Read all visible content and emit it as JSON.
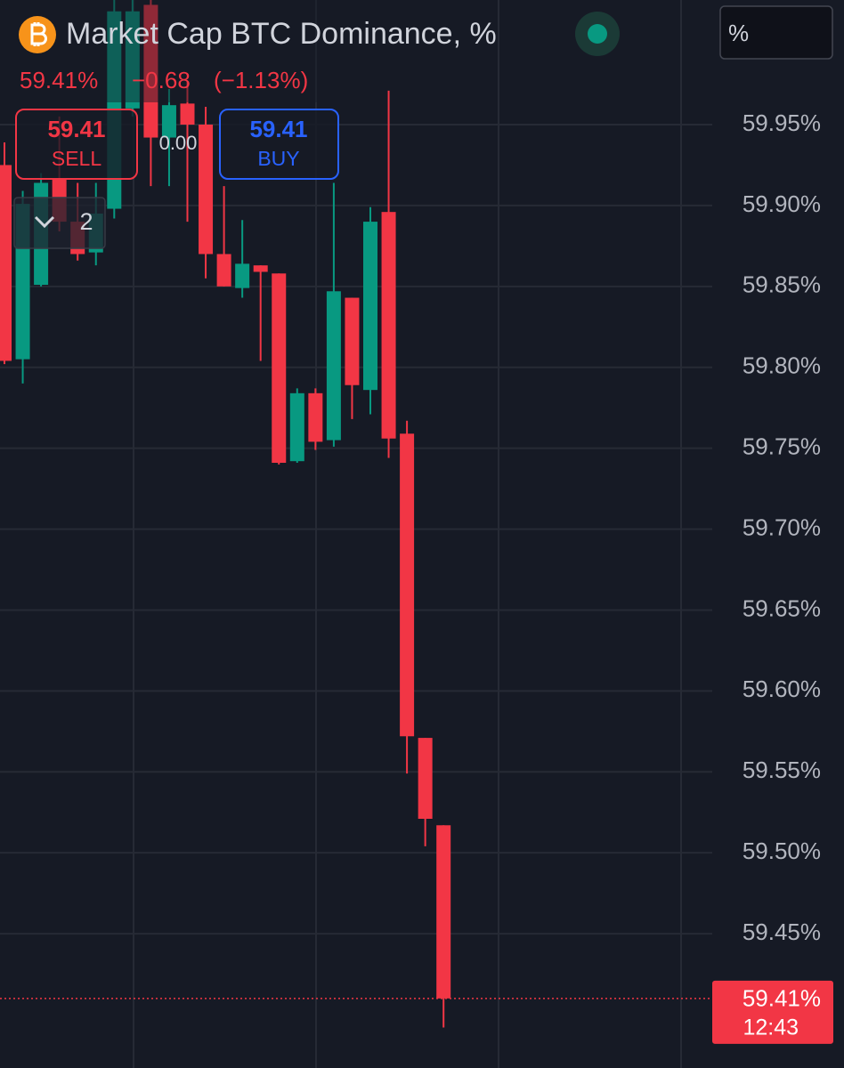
{
  "chart_data": {
    "type": "candlestick",
    "title": "Market Cap BTC Dominance, %",
    "candles": [
      {
        "open": 59.925,
        "high": 59.939,
        "low": 59.802,
        "close": 59.804
      },
      {
        "open": 59.805,
        "high": 59.909,
        "low": 59.79,
        "close": 59.901
      },
      {
        "open": 59.851,
        "high": 59.92,
        "low": 59.85,
        "close": 59.914
      },
      {
        "open": 59.917,
        "high": 59.955,
        "low": 59.884,
        "close": 59.89
      },
      {
        "open": 59.89,
        "high": 59.914,
        "low": 59.866,
        "close": 59.87
      },
      {
        "open": 59.871,
        "high": 59.914,
        "low": 59.863,
        "close": 59.895
      },
      {
        "open": 59.898,
        "high": 60.03,
        "low": 59.892,
        "close": 60.02
      },
      {
        "open": 59.96,
        "high": 60.03,
        "low": 59.955,
        "close": 60.02
      },
      {
        "open": 60.024,
        "high": 60.03,
        "low": 59.912,
        "close": 59.942
      },
      {
        "open": 59.942,
        "high": 59.972,
        "low": 59.912,
        "close": 59.962
      },
      {
        "open": 59.963,
        "high": 59.977,
        "low": 59.89,
        "close": 59.95
      },
      {
        "open": 59.95,
        "high": 59.961,
        "low": 59.855,
        "close": 59.87
      },
      {
        "open": 59.87,
        "high": 59.912,
        "low": 59.85,
        "close": 59.85
      },
      {
        "open": 59.849,
        "high": 59.891,
        "low": 59.843,
        "close": 59.864
      },
      {
        "open": 59.863,
        "high": 59.863,
        "low": 59.804,
        "close": 59.859
      },
      {
        "open": 59.858,
        "high": 59.858,
        "low": 59.74,
        "close": 59.741
      },
      {
        "open": 59.742,
        "high": 59.787,
        "low": 59.741,
        "close": 59.784
      },
      {
        "open": 59.784,
        "high": 59.787,
        "low": 59.749,
        "close": 59.754
      },
      {
        "open": 59.755,
        "high": 59.914,
        "low": 59.751,
        "close": 59.847
      },
      {
        "open": 59.843,
        "high": 59.843,
        "low": 59.768,
        "close": 59.789
      },
      {
        "open": 59.786,
        "high": 59.899,
        "low": 59.771,
        "close": 59.89
      },
      {
        "open": 59.896,
        "high": 59.971,
        "low": 59.744,
        "close": 59.756
      },
      {
        "open": 59.759,
        "high": 59.767,
        "low": 59.549,
        "close": 59.572
      },
      {
        "open": 59.571,
        "high": 59.571,
        "low": 59.504,
        "close": 59.521
      },
      {
        "open": 59.517,
        "high": 59.517,
        "low": 59.392,
        "close": 59.41
      }
    ],
    "up_color": "#089981",
    "down_color": "#f23645",
    "ylim": [
      59.367,
      60.027
    ],
    "yticks": [
      {
        "value": 59.95,
        "label": "59.95%"
      },
      {
        "value": 59.9,
        "label": "59.90%"
      },
      {
        "value": 59.85,
        "label": "59.85%"
      },
      {
        "value": 59.8,
        "label": "59.80%"
      },
      {
        "value": 59.75,
        "label": "59.75%"
      },
      {
        "value": 59.7,
        "label": "59.70%"
      },
      {
        "value": 59.65,
        "label": "59.65%"
      },
      {
        "value": 59.6,
        "label": "59.60%"
      },
      {
        "value": 59.55,
        "label": "59.55%"
      },
      {
        "value": 59.5,
        "label": "59.50%"
      },
      {
        "value": 59.45,
        "label": "59.45%"
      }
    ],
    "grid": true,
    "last_price": {
      "value": 59.41,
      "label": "59.41%"
    },
    "countdown": "12:43"
  },
  "header": {
    "last": "59.41%",
    "change": "−0.68",
    "change_pct": "(−1.13%)"
  },
  "trade": {
    "sell_price": "59.41",
    "sell_label": "SELL",
    "spread": "0.00",
    "buy_price": "59.41",
    "buy_label": "BUY"
  },
  "layers_count": "2",
  "unit_selector": "%"
}
